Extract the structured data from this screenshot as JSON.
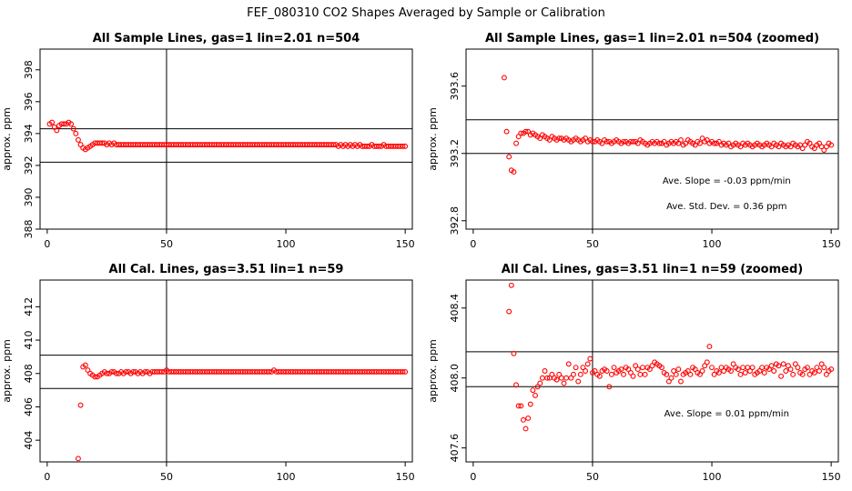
{
  "figure_title": "FEF_080310  CO2 Shapes Averaged by Sample or Calibration",
  "colors": {
    "points": "#ff0000",
    "lines": "#000000",
    "background": "#ffffff"
  },
  "chart_data": [
    {
      "type": "scatter",
      "title": "All Sample Lines, gas=1 lin=2.01 n=504",
      "ylabel": "approx. ppm",
      "xlim": [
        -3,
        153
      ],
      "ylim": [
        388,
        399.3
      ],
      "xticks": [
        0,
        50,
        100,
        150
      ],
      "yticks": [
        388,
        390,
        392,
        394,
        396,
        398
      ],
      "hlines": [
        392.2,
        394.3
      ],
      "vline": 50,
      "annotations": [],
      "x": [
        1,
        2,
        3,
        4,
        5,
        6,
        7,
        8,
        9,
        10,
        11,
        12,
        13,
        14,
        15,
        16,
        17,
        18,
        19,
        20,
        21,
        22,
        23,
        24,
        25,
        26,
        27,
        28,
        29,
        30,
        31,
        32,
        33,
        34,
        35,
        36,
        37,
        38,
        39,
        40,
        41,
        42,
        43,
        44,
        45,
        46,
        47,
        48,
        49,
        50,
        51,
        52,
        53,
        54,
        55,
        56,
        57,
        58,
        59,
        60,
        61,
        62,
        63,
        64,
        65,
        66,
        67,
        68,
        69,
        70,
        71,
        72,
        73,
        74,
        75,
        76,
        77,
        78,
        79,
        80,
        81,
        82,
        83,
        84,
        85,
        86,
        87,
        88,
        89,
        90,
        91,
        92,
        93,
        94,
        95,
        96,
        97,
        98,
        99,
        100,
        101,
        102,
        103,
        104,
        105,
        106,
        107,
        108,
        109,
        110,
        111,
        112,
        113,
        114,
        115,
        116,
        117,
        118,
        119,
        120,
        121,
        122,
        123,
        124,
        125,
        126,
        127,
        128,
        129,
        130,
        131,
        132,
        133,
        134,
        135,
        136,
        137,
        138,
        139,
        140,
        141,
        142,
        143,
        144,
        145,
        146,
        147,
        148,
        149,
        150
      ],
      "y": [
        394.6,
        394.7,
        394.4,
        394.2,
        394.5,
        394.6,
        394.6,
        394.6,
        394.7,
        394.6,
        394.3,
        394.0,
        393.6,
        393.3,
        393.1,
        393.0,
        393.1,
        393.2,
        393.3,
        393.4,
        393.4,
        393.4,
        393.4,
        393.4,
        393.3,
        393.4,
        393.3,
        393.4,
        393.3,
        393.3,
        393.3,
        393.3,
        393.3,
        393.3,
        393.3,
        393.3,
        393.3,
        393.3,
        393.3,
        393.3,
        393.3,
        393.3,
        393.3,
        393.3,
        393.3,
        393.3,
        393.3,
        393.3,
        393.3,
        393.3,
        393.3,
        393.3,
        393.3,
        393.3,
        393.3,
        393.3,
        393.3,
        393.3,
        393.3,
        393.3,
        393.3,
        393.3,
        393.3,
        393.3,
        393.3,
        393.3,
        393.3,
        393.3,
        393.3,
        393.3,
        393.3,
        393.3,
        393.3,
        393.3,
        393.3,
        393.3,
        393.3,
        393.3,
        393.3,
        393.3,
        393.3,
        393.3,
        393.3,
        393.3,
        393.3,
        393.3,
        393.3,
        393.3,
        393.3,
        393.3,
        393.3,
        393.3,
        393.3,
        393.3,
        393.3,
        393.3,
        393.3,
        393.3,
        393.3,
        393.3,
        393.3,
        393.3,
        393.3,
        393.3,
        393.3,
        393.3,
        393.3,
        393.3,
        393.3,
        393.3,
        393.3,
        393.3,
        393.3,
        393.3,
        393.3,
        393.3,
        393.3,
        393.3,
        393.3,
        393.3,
        393.3,
        393.2,
        393.3,
        393.2,
        393.3,
        393.2,
        393.3,
        393.2,
        393.3,
        393.2,
        393.3,
        393.2,
        393.2,
        393.2,
        393.2,
        393.3,
        393.2,
        393.2,
        393.2,
        393.2,
        393.3,
        393.2,
        393.2,
        393.2,
        393.2,
        393.2,
        393.2,
        393.2,
        393.2,
        393.2
      ]
    },
    {
      "type": "scatter",
      "title": "All Sample Lines, gas=1 lin=2.01 n=504 (zoomed)",
      "ylabel": "approx. ppm",
      "xlim": [
        -3,
        153
      ],
      "ylim": [
        392.75,
        393.82
      ],
      "xticks": [
        0,
        50,
        100,
        150
      ],
      "yticks": [
        392.8,
        393.2,
        393.6
      ],
      "hlines": [
        393.2,
        393.4
      ],
      "vline": 50,
      "annotations": [
        "Ave. Slope =  -0.03  ppm/min",
        "Ave. Std. Dev. =  0.36  ppm"
      ],
      "x": [
        13,
        14,
        15,
        16,
        17,
        18,
        19,
        20,
        21,
        22,
        23,
        24,
        25,
        26,
        27,
        28,
        29,
        30,
        31,
        32,
        33,
        34,
        35,
        36,
        37,
        38,
        39,
        40,
        41,
        42,
        43,
        44,
        45,
        46,
        47,
        48,
        49,
        50,
        51,
        52,
        53,
        54,
        55,
        56,
        57,
        58,
        59,
        60,
        61,
        62,
        63,
        64,
        65,
        66,
        67,
        68,
        69,
        70,
        71,
        72,
        73,
        74,
        75,
        76,
        77,
        78,
        79,
        80,
        81,
        82,
        83,
        84,
        85,
        86,
        87,
        88,
        89,
        90,
        91,
        92,
        93,
        94,
        95,
        96,
        97,
        98,
        99,
        100,
        101,
        102,
        103,
        104,
        105,
        106,
        107,
        108,
        109,
        110,
        111,
        112,
        113,
        114,
        115,
        116,
        117,
        118,
        119,
        120,
        121,
        122,
        123,
        124,
        125,
        126,
        127,
        128,
        129,
        130,
        131,
        132,
        133,
        134,
        135,
        136,
        137,
        138,
        139,
        140,
        141,
        142,
        143,
        144,
        145,
        146,
        147,
        148,
        149,
        150
      ],
      "y": [
        393.65,
        393.33,
        393.18,
        393.1,
        393.09,
        393.26,
        393.3,
        393.32,
        393.32,
        393.33,
        393.33,
        393.31,
        393.32,
        393.31,
        393.3,
        393.29,
        393.31,
        393.3,
        393.29,
        393.28,
        393.3,
        393.29,
        393.28,
        393.29,
        393.29,
        393.28,
        393.29,
        393.28,
        393.27,
        393.28,
        393.29,
        393.28,
        393.27,
        393.28,
        393.29,
        393.27,
        393.28,
        393.27,
        393.27,
        393.28,
        393.27,
        393.26,
        393.28,
        393.27,
        393.27,
        393.26,
        393.27,
        393.28,
        393.27,
        393.26,
        393.27,
        393.27,
        393.26,
        393.27,
        393.27,
        393.27,
        393.26,
        393.28,
        393.27,
        393.26,
        393.25,
        393.26,
        393.27,
        393.26,
        393.27,
        393.26,
        393.26,
        393.27,
        393.25,
        393.26,
        393.27,
        393.26,
        393.27,
        393.26,
        393.28,
        393.25,
        393.26,
        393.28,
        393.27,
        393.26,
        393.25,
        393.27,
        393.26,
        393.29,
        393.27,
        393.28,
        393.26,
        393.27,
        393.26,
        393.26,
        393.27,
        393.25,
        393.26,
        393.25,
        393.26,
        393.24,
        393.25,
        393.26,
        393.25,
        393.24,
        393.26,
        393.25,
        393.26,
        393.25,
        393.24,
        393.25,
        393.26,
        393.25,
        393.24,
        393.25,
        393.26,
        393.25,
        393.24,
        393.26,
        393.25,
        393.24,
        393.26,
        393.25,
        393.24,
        393.25,
        393.24,
        393.26,
        393.25,
        393.24,
        393.25,
        393.23,
        393.25,
        393.27,
        393.26,
        393.24,
        393.23,
        393.25,
        393.26,
        393.24,
        393.22,
        393.24,
        393.26,
        393.25
      ]
    },
    {
      "type": "scatter",
      "title": "All Cal. Lines, gas=3.51 lin=1 n=59",
      "ylabel": "approx. ppm",
      "xlim": [
        -3,
        153
      ],
      "ylim": [
        402.7,
        413.6
      ],
      "xticks": [
        0,
        50,
        100,
        150
      ],
      "yticks": [
        404,
        406,
        408,
        410,
        412
      ],
      "hlines": [
        407.1,
        409.1
      ],
      "vline": 50,
      "annotations": [],
      "x": [
        13,
        14,
        15,
        16,
        17,
        18,
        19,
        20,
        21,
        22,
        23,
        24,
        25,
        26,
        27,
        28,
        29,
        30,
        31,
        32,
        33,
        34,
        35,
        36,
        37,
        38,
        39,
        40,
        41,
        42,
        43,
        44,
        45,
        46,
        47,
        48,
        49,
        50,
        51,
        52,
        53,
        54,
        55,
        56,
        57,
        58,
        59,
        60,
        61,
        62,
        63,
        64,
        65,
        66,
        67,
        68,
        69,
        70,
        71,
        72,
        73,
        74,
        75,
        76,
        77,
        78,
        79,
        80,
        81,
        82,
        83,
        84,
        85,
        86,
        87,
        88,
        89,
        90,
        91,
        92,
        93,
        94,
        95,
        96,
        97,
        98,
        99,
        100,
        101,
        102,
        103,
        104,
        105,
        106,
        107,
        108,
        109,
        110,
        111,
        112,
        113,
        114,
        115,
        116,
        117,
        118,
        119,
        120,
        121,
        122,
        123,
        124,
        125,
        126,
        127,
        128,
        129,
        130,
        131,
        132,
        133,
        134,
        135,
        136,
        137,
        138,
        139,
        140,
        141,
        142,
        143,
        144,
        145,
        146,
        147,
        148,
        149,
        150
      ],
      "y": [
        402.9,
        406.1,
        408.4,
        408.5,
        408.2,
        408.0,
        407.9,
        407.8,
        407.8,
        407.9,
        408.0,
        408.1,
        408.0,
        408.0,
        408.1,
        408.1,
        408.0,
        408.0,
        408.1,
        408.0,
        408.1,
        408.1,
        408.0,
        408.1,
        408.1,
        408.0,
        408.1,
        408.0,
        408.1,
        408.1,
        408.0,
        408.1,
        408.1,
        408.1,
        408.1,
        408.1,
        408.1,
        408.2,
        408.1,
        408.1,
        408.1,
        408.1,
        408.1,
        408.1,
        408.1,
        408.1,
        408.1,
        408.1,
        408.1,
        408.1,
        408.1,
        408.1,
        408.1,
        408.1,
        408.1,
        408.1,
        408.1,
        408.1,
        408.1,
        408.1,
        408.1,
        408.1,
        408.1,
        408.1,
        408.1,
        408.1,
        408.1,
        408.1,
        408.1,
        408.1,
        408.1,
        408.1,
        408.1,
        408.1,
        408.1,
        408.1,
        408.1,
        408.1,
        408.1,
        408.1,
        408.1,
        408.1,
        408.2,
        408.1,
        408.1,
        408.1,
        408.1,
        408.1,
        408.1,
        408.1,
        408.1,
        408.1,
        408.1,
        408.1,
        408.1,
        408.1,
        408.1,
        408.1,
        408.1,
        408.1,
        408.1,
        408.1,
        408.1,
        408.1,
        408.1,
        408.1,
        408.1,
        408.1,
        408.1,
        408.1,
        408.1,
        408.1,
        408.1,
        408.1,
        408.1,
        408.1,
        408.1,
        408.1,
        408.1,
        408.1,
        408.1,
        408.1,
        408.1,
        408.1,
        408.1,
        408.1,
        408.1,
        408.1,
        408.1,
        408.1,
        408.1,
        408.1,
        408.1,
        408.1,
        408.1,
        408.1,
        408.1,
        408.1
      ]
    },
    {
      "type": "scatter",
      "title": "All Cal. Lines, gas=3.51 lin=1 n=59 (zoomed)",
      "ylabel": "approx. ppm",
      "xlim": [
        -3,
        153
      ],
      "ylim": [
        407.52,
        408.56
      ],
      "xticks": [
        0,
        50,
        100,
        150
      ],
      "yticks": [
        407.6,
        408.0,
        408.4
      ],
      "hlines": [
        407.95,
        408.15
      ],
      "vline": 50,
      "annotations": [
        "Ave. Slope =  0.01  ppm/min"
      ],
      "x": [
        15,
        16,
        17,
        18,
        19,
        20,
        21,
        22,
        23,
        24,
        25,
        26,
        27,
        28,
        29,
        30,
        31,
        32,
        33,
        34,
        35,
        36,
        37,
        38,
        39,
        40,
        41,
        42,
        43,
        44,
        45,
        46,
        47,
        48,
        49,
        50,
        51,
        52,
        53,
        54,
        55,
        56,
        57,
        58,
        59,
        60,
        61,
        62,
        63,
        64,
        65,
        66,
        67,
        68,
        69,
        70,
        71,
        72,
        73,
        74,
        75,
        76,
        77,
        78,
        79,
        80,
        81,
        82,
        83,
        84,
        85,
        86,
        87,
        88,
        89,
        90,
        91,
        92,
        93,
        94,
        95,
        96,
        97,
        98,
        99,
        100,
        101,
        102,
        103,
        104,
        105,
        106,
        107,
        108,
        109,
        110,
        111,
        112,
        113,
        114,
        115,
        116,
        117,
        118,
        119,
        120,
        121,
        122,
        123,
        124,
        125,
        126,
        127,
        128,
        129,
        130,
        131,
        132,
        133,
        134,
        135,
        136,
        137,
        138,
        139,
        140,
        141,
        142,
        143,
        144,
        145,
        146,
        147,
        148,
        149,
        150
      ],
      "y": [
        408.38,
        408.53,
        408.14,
        407.96,
        407.84,
        407.84,
        407.76,
        407.71,
        407.77,
        407.85,
        407.93,
        407.9,
        407.95,
        407.97,
        408.0,
        408.04,
        408.0,
        408.0,
        408.02,
        408.0,
        407.99,
        408.02,
        408.0,
        407.97,
        408.0,
        408.08,
        408.0,
        408.02,
        408.06,
        407.98,
        408.02,
        408.06,
        408.04,
        408.08,
        408.11,
        408.03,
        408.04,
        408.02,
        408.01,
        408.04,
        408.05,
        408.04,
        407.95,
        408.02,
        408.06,
        408.03,
        408.04,
        408.05,
        408.02,
        408.06,
        408.05,
        408.03,
        408.01,
        408.07,
        408.05,
        408.02,
        408.06,
        408.02,
        408.06,
        408.05,
        408.07,
        408.09,
        408.08,
        408.07,
        408.06,
        408.03,
        408.02,
        407.98,
        408.0,
        408.04,
        408.02,
        408.05,
        407.98,
        408.02,
        408.03,
        408.04,
        408.02,
        408.06,
        408.05,
        408.03,
        408.02,
        408.04,
        408.07,
        408.09,
        408.18,
        408.06,
        408.02,
        408.04,
        408.03,
        408.06,
        408.04,
        408.06,
        408.05,
        408.04,
        408.08,
        408.06,
        408.05,
        408.02,
        408.06,
        408.03,
        408.06,
        408.04,
        408.06,
        408.02,
        408.03,
        408.04,
        408.06,
        408.03,
        408.06,
        408.05,
        408.07,
        408.04,
        408.08,
        408.07,
        408.01,
        408.08,
        408.04,
        408.07,
        408.05,
        408.02,
        408.08,
        408.06,
        408.03,
        408.02,
        408.05,
        408.06,
        408.02,
        408.04,
        408.03,
        408.06,
        408.04,
        408.08,
        408.06,
        408.02,
        408.04,
        408.05
      ]
    }
  ]
}
